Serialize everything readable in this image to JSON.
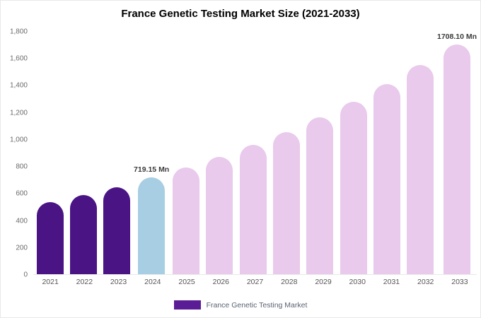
{
  "title": "France Genetic Testing Market Size (2021-2033)",
  "legend": {
    "label": "France Genetic Testing Market",
    "swatch_color": "#5a1d96"
  },
  "colors": {
    "historical_bar": "#4a1485",
    "highlight_bar": "#a7cee3",
    "forecast_bar": "#e9c9ec"
  },
  "chart_data": {
    "type": "bar",
    "title": "France Genetic Testing Market Size (2021-2033)",
    "unit": "Mn",
    "categories": [
      "2021",
      "2022",
      "2023",
      "2024",
      "2025",
      "2026",
      "2027",
      "2028",
      "2029",
      "2030",
      "2031",
      "2032",
      "2033"
    ],
    "values": [
      534,
      586,
      648,
      719.15,
      791.7,
      871.6,
      959.5,
      1056.3,
      1162.9,
      1280.2,
      1409.4,
      1551.6,
      1708.1
    ],
    "bar_colors": [
      "#4a1485",
      "#4a1485",
      "#4a1485",
      "#a7cee3",
      "#e9c9ec",
      "#e9c9ec",
      "#e9c9ec",
      "#e9c9ec",
      "#e9c9ec",
      "#e9c9ec",
      "#e9c9ec",
      "#e9c9ec",
      "#e9c9ec"
    ],
    "ylim": [
      0,
      1800
    ],
    "ytick_step": 200,
    "ytick_labels": [
      "0",
      "200",
      "400",
      "600",
      "800",
      "1,000",
      "1,200",
      "1,400",
      "1,600",
      "1,800"
    ],
    "grid": false,
    "legend_position": "bottom",
    "legend_entries": [
      "France Genetic Testing Market"
    ],
    "annotations": [
      {
        "category": "2024",
        "text": "719.15 Mn"
      },
      {
        "category": "2033",
        "text": "1708.10 Mn"
      }
    ]
  }
}
